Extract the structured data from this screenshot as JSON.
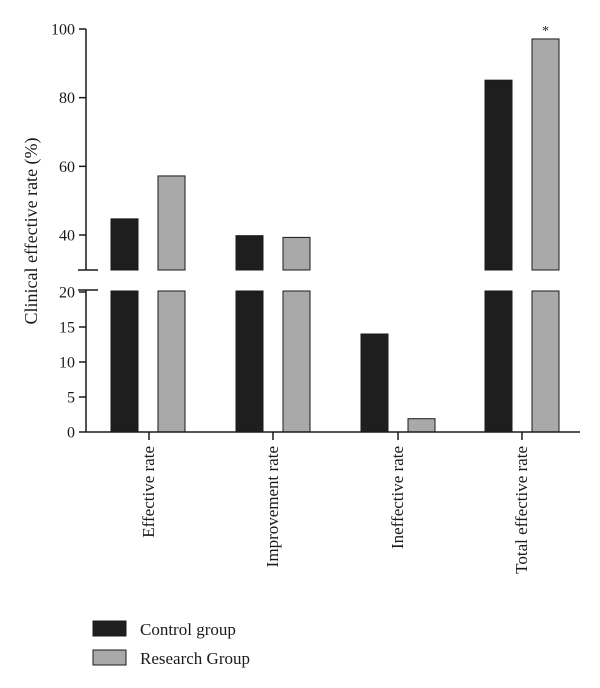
{
  "chart_data": {
    "type": "bar",
    "ylabel": "Clinical effective rate (%)",
    "categories": [
      "Effective rate",
      "Improvement rate",
      "Ineffective rate",
      "Total effective rate"
    ],
    "series": [
      {
        "name": "Control group",
        "color": "#1e1e1e",
        "values": [
          44.7,
          39.8,
          14.0,
          85.1
        ]
      },
      {
        "name": "Research Group",
        "color": "#a9a9a9",
        "values": [
          57.2,
          39.3,
          1.9,
          97.1
        ]
      }
    ],
    "y_axis_broken": true,
    "lower_segment": {
      "ylim": [
        0,
        20
      ],
      "ticks": [
        0,
        5,
        10,
        15,
        20
      ]
    },
    "upper_segment": {
      "ylim": [
        30,
        100
      ],
      "ticks": [
        40,
        60,
        80,
        100
      ]
    },
    "tick_labels_lower": [
      "0",
      "5",
      "10",
      "15",
      "20"
    ],
    "tick_labels_upper": [
      "40",
      "60",
      "80",
      "100"
    ],
    "annotations": [
      {
        "category": "Total effective rate",
        "series": "Research Group",
        "text": "*"
      }
    ],
    "legend_position": "bottom-left",
    "grid": false
  }
}
